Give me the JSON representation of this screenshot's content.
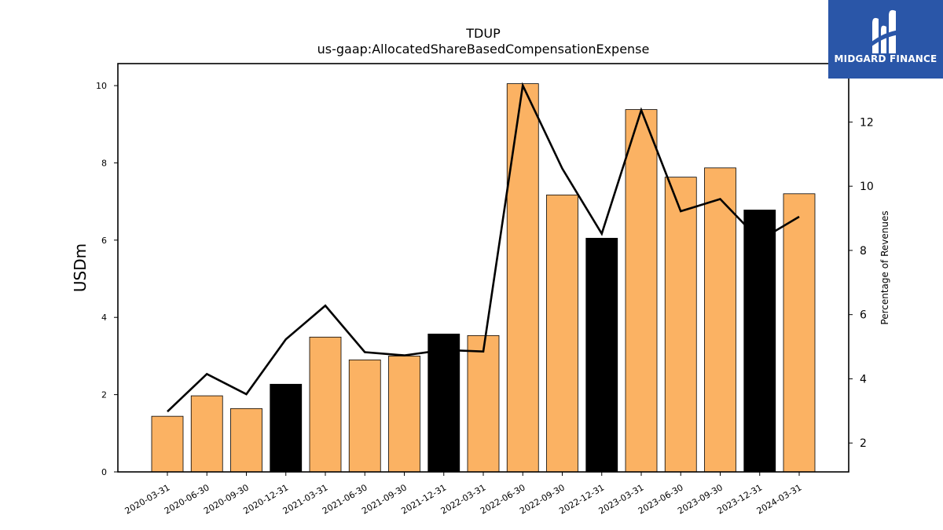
{
  "brand": {
    "name": "MIDGARD FINANCE",
    "color": "#2a56a8"
  },
  "chart_data": {
    "type": "bar",
    "title": "TDUP",
    "subtitle": "us-gaap:AllocatedShareBasedCompensationExpense",
    "ylabel": "USDm",
    "y2label": "Percentage of Revenues",
    "ylim": [
      0,
      10.57
    ],
    "y2lim": [
      1.1,
      13.82
    ],
    "yticks": [
      0,
      2,
      4,
      6,
      8,
      10
    ],
    "y2ticks": [
      2,
      4,
      6,
      8,
      10,
      12
    ],
    "categories": [
      "2020-03-31",
      "2020-06-30",
      "2020-09-30",
      "2020-12-31",
      "2021-03-31",
      "2021-06-30",
      "2021-09-30",
      "2021-12-31",
      "2022-03-31",
      "2022-06-30",
      "2022-09-30",
      "2022-12-31",
      "2023-03-31",
      "2023-06-30",
      "2023-09-30",
      "2023-12-31",
      "2024-03-31"
    ],
    "series": [
      {
        "type": "bar",
        "values": [
          1.44,
          1.97,
          1.64,
          2.27,
          3.49,
          2.9,
          3.0,
          3.57,
          3.53,
          10.05,
          7.17,
          6.05,
          9.38,
          7.63,
          7.87,
          6.78,
          7.2
        ],
        "colors": [
          "#fbb263",
          "#fbb263",
          "#fbb263",
          "#000000",
          "#fbb263",
          "#fbb263",
          "#fbb263",
          "#000000",
          "#fbb263",
          "#fbb263",
          "#fbb263",
          "#000000",
          "#fbb263",
          "#fbb263",
          "#fbb263",
          "#000000",
          "#fbb263"
        ]
      },
      {
        "type": "line",
        "axis": "right",
        "color": "#000000",
        "values": [
          2.98,
          4.15,
          3.52,
          5.23,
          6.28,
          4.83,
          4.73,
          4.9,
          4.85,
          13.14,
          10.55,
          8.52,
          12.37,
          9.22,
          9.6,
          8.32,
          9.05
        ]
      }
    ]
  }
}
